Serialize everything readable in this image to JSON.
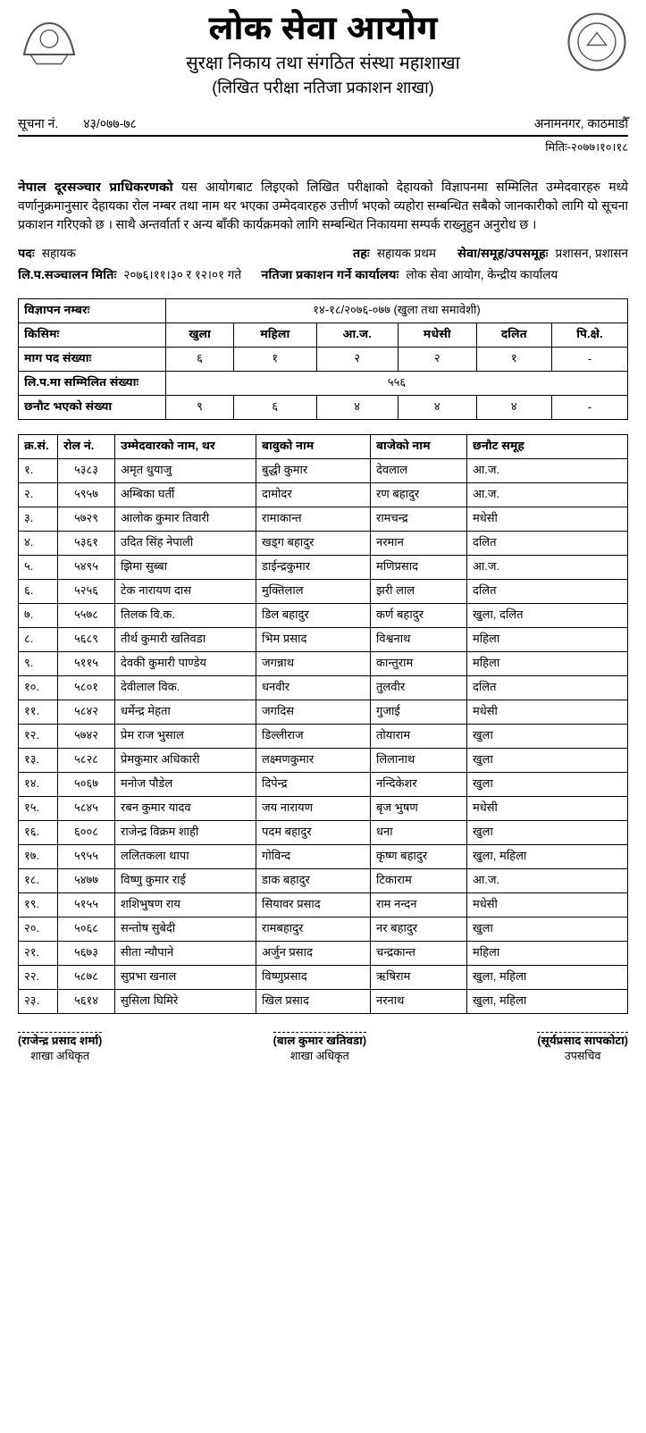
{
  "header": {
    "title": "लोक सेवा आयोग",
    "subtitle": "सुरक्षा निकाय तथा संगठित संस्था महाशाखा",
    "subtitle2": "(लिखित परीक्षा नतिजा प्रकाशन शाखा)"
  },
  "notice": {
    "label": "सूचना नं.",
    "number": "४३/०७७-७८",
    "location": "अनामनगर, काठमाडौँ",
    "date": "मितिः-२०७७।१०।१८"
  },
  "paragraph": {
    "org": "नेपाल दूरसञ्चार प्राधिकरणको",
    "rest": " यस आयोगबाट लिइएको लिखित परीक्षाको देहायको विज्ञापनमा सम्मिलित उम्मेदवारहरु मध्ये वर्णानुक्रमानुसार देहायका रोल नम्बर तथा नाम थर भएका उम्मेदवारहरु उत्तीर्ण भएको व्यहोरा सम्बन्धित सबैको जानकारीको लागि यो सूचना प्रकाशन गरिएको छ । साथै अन्तर्वार्ता र अन्य बाँकी कार्यक्रमको लागि सम्बन्धित निकायमा सम्पर्क राख्नुहुन अनुरोध छ ।"
  },
  "details": {
    "post_label": "पदः",
    "post_value": "सहायक",
    "level_label": "तहः",
    "level_value": "सहायक प्रथम",
    "service_label": "सेवा/समूह/उपसमूहः",
    "service_value": "प्रशासन, प्रशासन",
    "examdate_label": "लि.प.सञ्चालन मितिः",
    "examdate_value": "२०७६।११।३० र १२।०१ गते",
    "office_label": "नतिजा प्रकाशन गर्ने कार्यालयः",
    "office_value": "लोक सेवा आयोग, केन्द्रीय कार्यालय"
  },
  "summary": {
    "ad_label": "विज्ञापन नम्बरः",
    "ad_value": "१४-१८/२०७६-०७७ (खुला तथा समावेशी)",
    "type_label": "किसिमः",
    "types": [
      "खुला",
      "महिला",
      "आ.ज.",
      "मधेसी",
      "दलित",
      "पि.क्षे."
    ],
    "demand_label": "माग पद संख्याः",
    "demand": [
      "६",
      "१",
      "२",
      "२",
      "१",
      "-"
    ],
    "appeared_label": "लि.प.मा सम्मिलित संख्याः",
    "appeared_value": "५५६",
    "selected_label": "छनौट भएको संख्या",
    "selected": [
      "९",
      "६",
      "४",
      "४",
      "४",
      "-"
    ]
  },
  "candidates": {
    "columns": [
      "क्र.सं.",
      "रोल नं.",
      "उम्मेदवारको नाम, थर",
      "बावुको नाम",
      "बाजेको नाम",
      "छनौट समूह"
    ],
    "rows": [
      [
        "१.",
        "५३८३",
        "अमृत धुयाजु",
        "बुद्धी कुमार",
        "देवलाल",
        "आ.ज."
      ],
      [
        "२.",
        "५९५७",
        "अम्बिका घर्ती",
        "दामोदर",
        "रण बहादुर",
        "आ.ज."
      ],
      [
        "३.",
        "५७२९",
        "आलोक कुमार तिवारी",
        "रामाकान्त",
        "रामचन्द्र",
        "मधेसी"
      ],
      [
        "४.",
        "५३६१",
        "उदित सिंह नेपाली",
        "खड्ग बहादुर",
        "नरमान",
        "दलित"
      ],
      [
        "५.",
        "५४९५",
        "झिमा सुब्बा",
        "डाईन्द्रकुमार",
        "मणिप्रसाद",
        "आ.ज."
      ],
      [
        "६.",
        "५२५६",
        "टेक नारायण दास",
        "मुक्तिलाल",
        "झरी लाल",
        "दलित"
      ],
      [
        "७.",
        "५५७८",
        "तिलक वि.क.",
        "डिल बहादुर",
        "कर्ण बहादुर",
        "खुला, दलित"
      ],
      [
        "८.",
        "५६८९",
        "तीर्थ कुमारी खतिवडा",
        "भिम प्रसाद",
        "विश्वनाथ",
        "महिला"
      ],
      [
        "९.",
        "५११५",
        "देवकी कुमारी पाण्डेय",
        "जगन्नाथ",
        "कान्तुराम",
        "महिला"
      ],
      [
        "१०.",
        "५८०१",
        "देवीलाल विक.",
        "धनवीर",
        "तुलवीर",
        "दलित"
      ],
      [
        "११.",
        "५८४२",
        "धर्मेन्द्र मेहता",
        "जगदिस",
        "गुजाई",
        "मधेसी"
      ],
      [
        "१२.",
        "५७४२",
        "प्रेम राज भुसाल",
        "डिल्लीराज",
        "तोयाराम",
        "खुला"
      ],
      [
        "१३.",
        "५८२८",
        "प्रेमकुमार अधिकारी",
        "लक्ष्मणकुमार",
        "लिलानाथ",
        "खुला"
      ],
      [
        "१४.",
        "५०६७",
        "मनोज पौडेल",
        "दिपेन्द्र",
        "नन्दिकेशर",
        "खुला"
      ],
      [
        "१५.",
        "५८४५",
        "रबन कुमार यादव",
        "जय नारायण",
        "बृज भुषण",
        "मधेसी"
      ],
      [
        "१६.",
        "६००८",
        "राजेन्द्र विक्रम शाही",
        "पदम बहादुर",
        "धना",
        "खुला"
      ],
      [
        "१७.",
        "५९५५",
        "ललितकला थापा",
        "गोविन्द",
        "कृष्ण बहादुर",
        "खुला, महिला"
      ],
      [
        "१८.",
        "५४७७",
        "विष्णु कुमार राई",
        "डाक बहादुर",
        "टिकाराम",
        "आ.ज."
      ],
      [
        "१९.",
        "५१५५",
        "शशिभुषण राय",
        "सियावर प्रसाद",
        "राम नन्दन",
        "मधेसी"
      ],
      [
        "२०.",
        "५०६८",
        "सन्तोष सुबेदी",
        "रामबहादुर",
        "नर बहादुर",
        "खुला"
      ],
      [
        "२१.",
        "५६७३",
        "सीता न्यौपाने",
        "अर्जुन प्रसाद",
        "चन्द्रकान्त",
        "महिला"
      ],
      [
        "२२.",
        "५८७८",
        "सुप्रभा खनाल",
        "विष्णुप्रसाद",
        "ऋषिराम",
        "खुला, महिला"
      ],
      [
        "२३.",
        "५६१४",
        "सुसिला घिमिरे",
        "खिल प्रसाद",
        "नरनाथ",
        "खुला, महिला"
      ]
    ]
  },
  "signatures": [
    {
      "name": "(राजेन्द्र प्रसाद शर्मा)",
      "title": "शाखा अधिकृत"
    },
    {
      "name": "(बाल कुमार खतिवडा)",
      "title": "शाखा अधिकृत"
    },
    {
      "name": "(सूर्यप्रसाद सापकोटा)",
      "title": "उपसचिव"
    }
  ],
  "styling": {
    "body_width": 723,
    "background": "#ffffff",
    "text_color": "#000000",
    "title_fontsize": 38,
    "subtitle_fontsize": 20,
    "body_fontsize": 14,
    "table_fontsize": 13,
    "border_color": "#000000"
  }
}
